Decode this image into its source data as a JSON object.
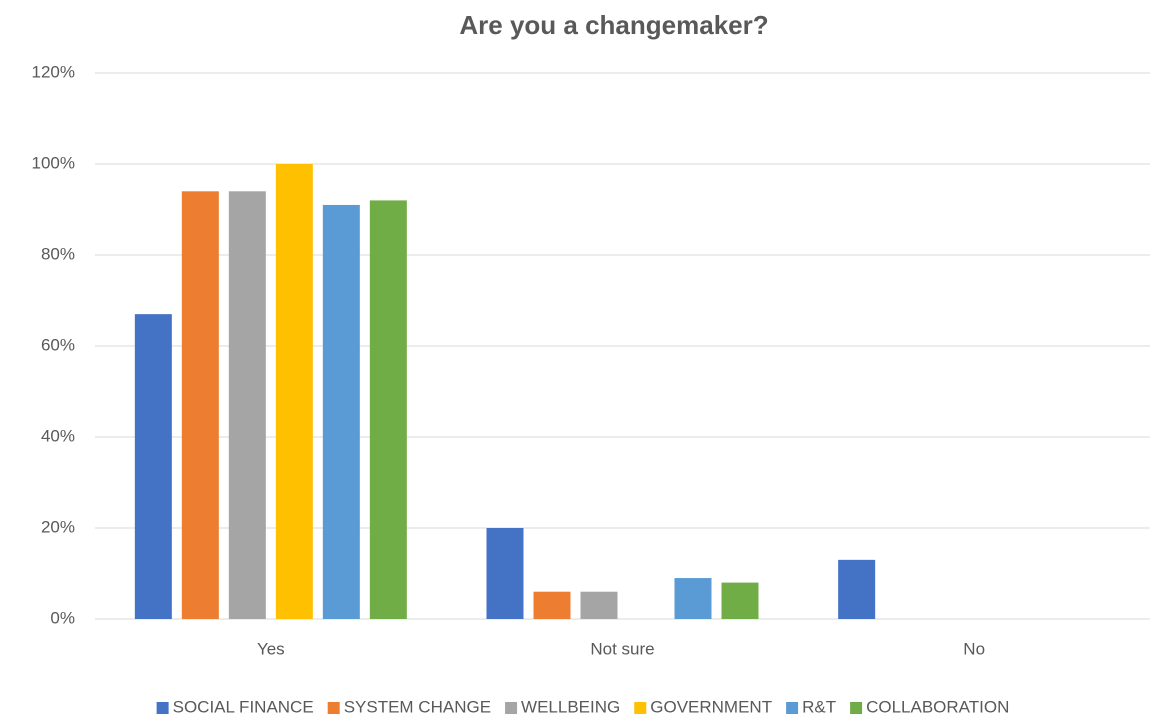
{
  "chart_data": {
    "type": "bar",
    "title": "Are you a changemaker?",
    "categories": [
      "Yes",
      "Not sure",
      "No"
    ],
    "series": [
      {
        "name": "SOCIAL FINANCE",
        "color": "#4472c4",
        "values": [
          67,
          20,
          13
        ]
      },
      {
        "name": "SYSTEM CHANGE",
        "color": "#ed7d31",
        "values": [
          94,
          6,
          0
        ]
      },
      {
        "name": "WELLBEING",
        "color": "#a5a5a5",
        "values": [
          94,
          6,
          0
        ]
      },
      {
        "name": "GOVERNMENT",
        "color": "#ffc000",
        "values": [
          100,
          0,
          0
        ]
      },
      {
        "name": "R&T",
        "color": "#5b9bd5",
        "values": [
          91,
          9,
          0
        ]
      },
      {
        "name": "COLLABORATION",
        "color": "#70ad47",
        "values": [
          92,
          8,
          0
        ]
      }
    ],
    "ylim": [
      0,
      120
    ],
    "yticks": [
      {
        "value": 0,
        "label": "0%"
      },
      {
        "value": 20,
        "label": "20%"
      },
      {
        "value": 40,
        "label": "40%"
      },
      {
        "value": 60,
        "label": "60%"
      },
      {
        "value": 80,
        "label": "80%"
      },
      {
        "value": 100,
        "label": "100%"
      },
      {
        "value": 120,
        "label": "120%"
      }
    ],
    "grid": true,
    "legend": "bottom"
  }
}
